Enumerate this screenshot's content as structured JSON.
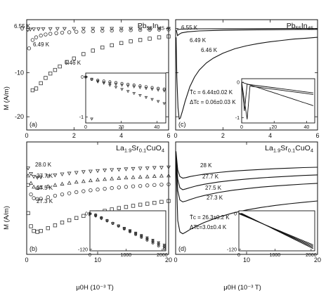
{
  "axis_titles": {
    "y": "M (A/m)",
    "x": "μ0H (10⁻³ T)"
  },
  "chart_data": [
    {
      "id": "a",
      "type": "scatter",
      "panel_label": "(a)",
      "title": "Pb55In45",
      "xlim": [
        0,
        6
      ],
      "ylim": [
        -23,
        2
      ],
      "x_ticks": [
        0,
        2,
        4,
        6
      ],
      "y_ticks": [
        0,
        -10,
        -20
      ],
      "series": [
        {
          "name": "6.55 K",
          "marker": "triangle-down",
          "x": [
            0.05,
            0.15,
            0.3,
            0.5,
            0.7,
            1.0,
            1.3,
            1.6,
            2.0,
            2.4,
            2.8,
            3.2,
            3.6,
            4.0,
            4.4,
            4.8,
            5.2,
            5.6,
            6.0
          ],
          "y": [
            -0.3,
            -0.2,
            -0.15,
            -0.12,
            -0.1,
            -0.08,
            -0.07,
            -0.06,
            -0.05,
            -0.04,
            -0.04,
            -0.03,
            -0.03,
            -0.03,
            -0.02,
            -0.02,
            -0.02,
            -0.02,
            -0.02
          ]
        },
        {
          "name": "6.49 K",
          "marker": "circle",
          "x": [
            0.1,
            0.25,
            0.4,
            0.6,
            0.8,
            1.0,
            1.25,
            1.5,
            1.8,
            2.1,
            2.4,
            2.8,
            3.2,
            3.6,
            4.0,
            4.4,
            4.8,
            5.2,
            5.6,
            6.0
          ],
          "y": [
            -4.5,
            -2.6,
            -2.0,
            -1.6,
            -1.35,
            -1.2,
            -1.05,
            -0.95,
            -0.85,
            -0.75,
            -0.68,
            -0.6,
            -0.52,
            -0.46,
            -0.4,
            -0.36,
            -0.32,
            -0.28,
            -0.25,
            -0.22
          ]
        },
        {
          "name": "6.46 K",
          "marker": "square",
          "x": [
            0.25,
            0.4,
            0.6,
            0.8,
            1.0,
            1.2,
            1.4,
            1.7,
            2.0,
            2.4,
            2.8,
            3.2,
            3.6,
            4.0,
            4.4,
            4.8,
            5.2,
            5.6,
            6.0
          ],
          "y": [
            -14,
            -13.6,
            -12.4,
            -11.2,
            -10.2,
            -9.4,
            -8.6,
            -7.6,
            -6.8,
            -5.8,
            -5.0,
            -4.3,
            -3.8,
            -3.3,
            -2.9,
            -2.6,
            -2.3,
            -2.0,
            -1.8
          ]
        }
      ],
      "inset": {
        "xlim": [
          0,
          45
        ],
        "ylim": [
          -1.15,
          0.1
        ],
        "x_ticks": [
          0,
          20,
          40
        ],
        "y_ticks": [
          0,
          -1
        ],
        "x_tick_labels": [
          "0",
          "20",
          "40"
        ],
        "y_tick_labels": [
          "0",
          "-1"
        ],
        "style": "markers"
      }
    },
    {
      "id": "c",
      "type": "line",
      "panel_label": "(c)",
      "title": "Pb55In45",
      "xlim": [
        0,
        6
      ],
      "ylim": [
        -23,
        2
      ],
      "x_ticks": [
        0,
        2,
        4,
        6
      ],
      "y_ticks": [
        0,
        -10,
        -20
      ],
      "annotations": [
        "T̄c = 6.44±0.02 K",
        "ΔTc = 0.06±0.03 K"
      ],
      "series": [
        {
          "name": "6.55 K",
          "x": [
            0.05,
            0.1,
            0.2,
            0.4,
            1,
            2,
            4,
            6
          ],
          "y": [
            -0.3,
            -0.25,
            -0.15,
            -0.1,
            -0.07,
            -0.05,
            -0.03,
            -0.02
          ]
        },
        {
          "name": "6.49 K",
          "x": [
            0.03,
            0.08,
            0.15,
            0.25,
            0.5,
            1,
            2,
            3,
            4,
            5,
            6
          ],
          "y": [
            -0.4,
            -1.6,
            -1.3,
            -1.0,
            -0.75,
            -0.55,
            -0.4,
            -0.33,
            -0.27,
            -0.23,
            -0.2
          ]
        },
        {
          "name": "6.46 K",
          "x": [
            0.02,
            0.05,
            0.1,
            0.15,
            0.2,
            0.3,
            0.4,
            0.6,
            0.8,
            1.0,
            1.3,
            1.6,
            2.0,
            2.5,
            3.0,
            3.5,
            4.0,
            4.5,
            5.0,
            5.5,
            6.0
          ],
          "y": [
            -2,
            -11,
            -18,
            -20.5,
            -20.3,
            -18.5,
            -16.5,
            -13.2,
            -11,
            -9.4,
            -7.8,
            -6.7,
            -5.6,
            -4.6,
            -3.9,
            -3.4,
            -3.0,
            -2.7,
            -2.4,
            -2.2,
            -2.0
          ]
        }
      ],
      "inset": {
        "xlim": [
          0,
          45
        ],
        "ylim": [
          -1.15,
          0.1
        ],
        "x_ticks": [
          0,
          20,
          40
        ],
        "y_ticks": [
          0,
          -1
        ],
        "x_tick_labels": [
          "0",
          "20",
          "40"
        ],
        "y_tick_labels": [
          "0",
          "-1"
        ],
        "style": "lines"
      }
    },
    {
      "id": "b",
      "type": "scatter",
      "panel_label": "(b)",
      "title": "La1.9Sr0.1CuO4",
      "xlim": [
        0,
        20
      ],
      "ylim": [
        -58,
        2
      ],
      "x_ticks": [
        0,
        10,
        20
      ],
      "y_ticks": [],
      "series": [
        {
          "name": "28.0 K",
          "marker": "triangle-down",
          "x": [
            0.2,
            0.6,
            1,
            1.5,
            2,
            3,
            4,
            5,
            6,
            7,
            8,
            9,
            10,
            11,
            12,
            13,
            14,
            15,
            16,
            17,
            18,
            19,
            20
          ],
          "y": [
            -12,
            -15,
            -16.5,
            -17,
            -16.8,
            -16.3,
            -15.7,
            -15.2,
            -14.8,
            -14.4,
            -14,
            -13.7,
            -13.4,
            -13.1,
            -12.9,
            -12.7,
            -12.5,
            -12.3,
            -12.1,
            -12,
            -11.8,
            -11.7,
            -11.5
          ]
        },
        {
          "name": "27.7 K",
          "marker": "triangle-up",
          "x": [
            0.2,
            0.6,
            1,
            1.5,
            2,
            3,
            4,
            5,
            6,
            7,
            8,
            9,
            10,
            11,
            12,
            13,
            14,
            15,
            16,
            17,
            18,
            19,
            20
          ],
          "y": [
            -16,
            -20,
            -22,
            -22.5,
            -22.3,
            -21.7,
            -21,
            -20.4,
            -19.9,
            -19.4,
            -19,
            -18.6,
            -18.2,
            -17.9,
            -17.6,
            -17.3,
            -17.1,
            -16.9,
            -16.7,
            -16.5,
            -16.3,
            -16.1,
            -16
          ]
        },
        {
          "name": "27.5 K",
          "marker": "circle",
          "x": [
            0.2,
            0.6,
            1,
            1.5,
            2,
            3,
            4,
            5,
            6,
            7,
            8,
            9,
            10,
            11,
            12,
            13,
            14,
            15,
            16,
            17,
            18,
            19,
            20
          ],
          "y": [
            -21,
            -26,
            -28,
            -28.5,
            -28.3,
            -27.5,
            -26.7,
            -26,
            -25.4,
            -24.8,
            -24.3,
            -23.8,
            -23.4,
            -23,
            -22.6,
            -22.3,
            -22,
            -21.7,
            -21.5,
            -21.2,
            -21,
            -20.8,
            -20.6
          ]
        },
        {
          "name": "27.3 K",
          "marker": "square",
          "x": [
            0.2,
            0.6,
            1,
            1.5,
            2,
            3,
            4,
            5,
            6,
            7,
            8,
            9,
            10,
            11,
            12,
            13,
            14,
            15,
            16,
            17,
            18,
            19,
            20
          ],
          "y": [
            -36,
            -43,
            -45.5,
            -46,
            -45.5,
            -44,
            -42.5,
            -41,
            -39.8,
            -38.6,
            -37.5,
            -36.5,
            -35.6,
            -34.8,
            -34,
            -33.3,
            -32.7,
            -32.1,
            -31.5,
            -31,
            -30.5,
            -30,
            -29.5
          ]
        }
      ],
      "inset": {
        "xlim": [
          0,
          2100
        ],
        "ylim": [
          -125,
          10
        ],
        "x_ticks": [
          0,
          1000,
          2000
        ],
        "y_ticks": [
          0,
          -120
        ],
        "x_tick_labels": [
          "0",
          "1000",
          "2000"
        ],
        "y_tick_labels": [
          "0",
          "-120"
        ],
        "style": "markers"
      }
    },
    {
      "id": "d",
      "type": "line",
      "panel_label": "(d)",
      "title": "La1.9Sr0.1CuO4",
      "xlim": [
        0,
        20
      ],
      "ylim": [
        -58,
        2
      ],
      "x_ticks": [
        0,
        10,
        20
      ],
      "y_ticks": [],
      "annotations": [
        "T̄c = 26.3±0.2 K",
        "ΔTc=3.0±0.4 K"
      ],
      "series": [
        {
          "name": "28 K",
          "x": [
            0.05,
            0.3,
            0.6,
            1,
            1.5,
            2,
            3,
            4,
            6,
            8,
            10,
            12,
            14,
            16,
            18,
            20
          ],
          "y": [
            -3,
            -13,
            -16.5,
            -17.3,
            -17,
            -16.5,
            -15.8,
            -15.2,
            -14.3,
            -13.6,
            -13.1,
            -12.7,
            -12.3,
            -12,
            -11.7,
            -11.5
          ]
        },
        {
          "name": "27.7 K",
          "x": [
            0.05,
            0.3,
            0.6,
            1,
            1.5,
            2,
            3,
            4,
            6,
            8,
            10,
            12,
            14,
            16,
            18,
            20
          ],
          "y": [
            -4,
            -18,
            -22.5,
            -23.5,
            -23,
            -22.4,
            -21.4,
            -20.6,
            -19.4,
            -18.5,
            -17.8,
            -17.2,
            -16.7,
            -16.3,
            -15.9,
            -15.6
          ]
        },
        {
          "name": "27.5 K",
          "x": [
            0.05,
            0.3,
            0.6,
            1,
            1.5,
            2,
            3,
            4,
            6,
            8,
            10,
            12,
            14,
            16,
            18,
            20
          ],
          "y": [
            -5,
            -24,
            -29,
            -30,
            -29.5,
            -28.8,
            -27.6,
            -26.6,
            -25,
            -23.8,
            -22.9,
            -22.1,
            -21.5,
            -21,
            -20.5,
            -20.1
          ]
        },
        {
          "name": "27.3 K",
          "x": [
            0.05,
            0.3,
            0.6,
            1,
            1.5,
            2,
            3,
            4,
            6,
            8,
            10,
            12,
            14,
            16,
            18,
            20
          ],
          "y": [
            -8,
            -40,
            -46,
            -47,
            -46,
            -44.8,
            -42.8,
            -41,
            -38.2,
            -36,
            -34.3,
            -33,
            -31.9,
            -31,
            -30.2,
            -29.5
          ]
        }
      ],
      "inset": {
        "xlim": [
          0,
          2100
        ],
        "ylim": [
          -125,
          10
        ],
        "x_ticks": [
          0,
          1000,
          2000
        ],
        "y_ticks": [
          0,
          -120
        ],
        "x_tick_labels": [
          "0",
          "1000",
          "2000"
        ],
        "y_tick_labels": [
          "0",
          "-120"
        ],
        "style": "lines"
      }
    }
  ]
}
